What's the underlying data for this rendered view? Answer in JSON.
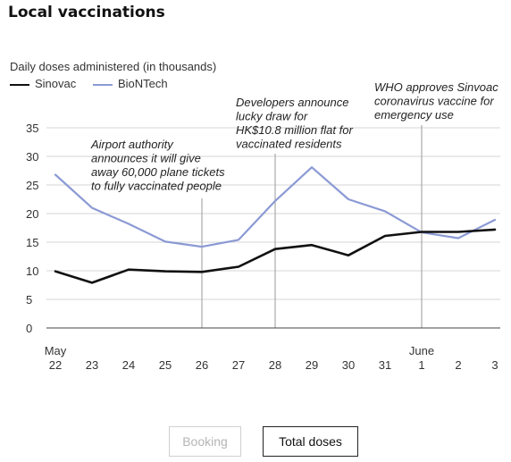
{
  "title": "Local vaccinations",
  "colors": {
    "sinovac": "#111111",
    "biontech": "#8b9ad4",
    "grid": "#d6d6d6",
    "annotation_line": "#999999",
    "axis_text": "#333333"
  },
  "chart_data": {
    "type": "line",
    "ylabel": "Daily doses administered (in thousands)",
    "ylim": [
      0,
      35
    ],
    "y_ticks": [
      0,
      5,
      10,
      15,
      20,
      25,
      30,
      35
    ],
    "grid": "horizontal",
    "legend_position": "top-left",
    "x_tick_labels": [
      {
        "month": "May",
        "day": "22"
      },
      {
        "month": "",
        "day": "23"
      },
      {
        "month": "",
        "day": "24"
      },
      {
        "month": "",
        "day": "25"
      },
      {
        "month": "",
        "day": "26"
      },
      {
        "month": "",
        "day": "27"
      },
      {
        "month": "",
        "day": "28"
      },
      {
        "month": "",
        "day": "29"
      },
      {
        "month": "",
        "day": "30"
      },
      {
        "month": "",
        "day": "31"
      },
      {
        "month": "June",
        "day": "1"
      },
      {
        "month": "",
        "day": "2"
      },
      {
        "month": "",
        "day": "3"
      }
    ],
    "series": [
      {
        "name": "Sinovac",
        "color_key": "sinovac",
        "values": [
          9.9,
          7.9,
          10.2,
          9.9,
          9.8,
          10.7,
          13.8,
          14.5,
          12.7,
          16.1,
          16.8,
          16.8,
          17.2
        ]
      },
      {
        "name": "BioNTech",
        "color_key": "biontech",
        "values": [
          26.8,
          21.0,
          18.2,
          15.1,
          14.2,
          15.4,
          22.2,
          28.1,
          22.5,
          20.4,
          16.7,
          15.7,
          18.9
        ]
      }
    ],
    "annotations": [
      {
        "index": 4,
        "lines": [
          "Airport authority",
          "announces it will give",
          "away 60,000 plane tickets",
          "to fully vaccinated people"
        ]
      },
      {
        "index": 6,
        "lines": [
          "Developers announce",
          "lucky draw for",
          "HK$10.8 million flat for",
          "vaccinated residents"
        ]
      },
      {
        "index": 10,
        "lines": [
          "WHO approves Sinvoac",
          "coronavirus vaccine for",
          "emergency use"
        ]
      }
    ]
  },
  "buttons": {
    "booking_label": "Booking",
    "total_label": "Total doses"
  }
}
